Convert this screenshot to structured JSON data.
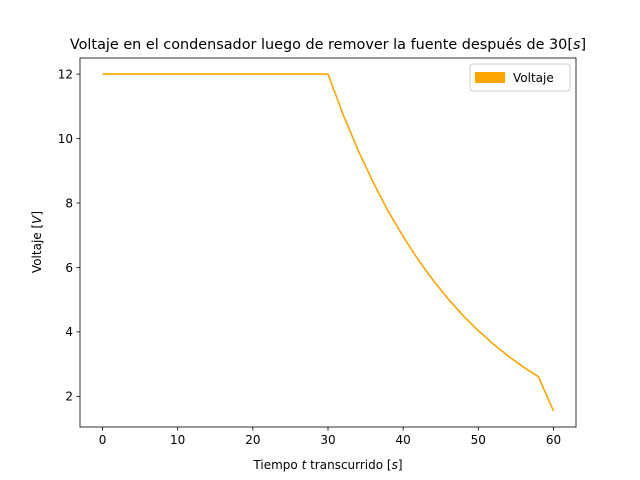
{
  "chart_data": {
    "type": "line",
    "title": "Voltaje en el condensador luego de remover la fuente después de 30[s]",
    "xlabel": "Tiempo t transcurrido [s]",
    "ylabel": "Voltaje [V]",
    "xlim": [
      -3,
      63
    ],
    "ylim": [
      1.05,
      12.5
    ],
    "xticks": [
      0,
      10,
      20,
      30,
      40,
      50,
      60
    ],
    "yticks": [
      2,
      4,
      6,
      8,
      10,
      12
    ],
    "grid": false,
    "legend_position": "top-right",
    "series": [
      {
        "name": "Voltaje",
        "color": "#ffa500",
        "x": [
          0,
          5,
          10,
          15,
          20,
          25,
          30,
          32,
          34,
          36,
          38,
          40,
          42,
          44,
          46,
          48,
          50,
          52,
          54,
          56,
          58,
          60
        ],
        "y": [
          12,
          12,
          12,
          12,
          12,
          12,
          12,
          10.75,
          9.64,
          8.65,
          7.75,
          6.96,
          6.24,
          5.6,
          5.02,
          4.5,
          4.04,
          3.62,
          3.25,
          2.91,
          2.61,
          1.55
        ]
      }
    ]
  }
}
